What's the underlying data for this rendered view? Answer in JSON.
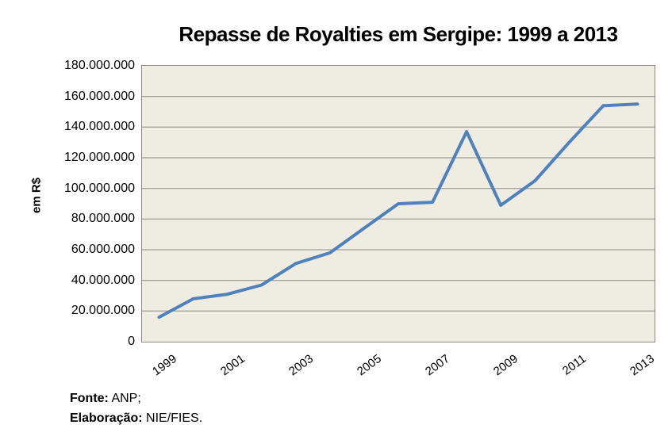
{
  "title": "Repasse de Royalties em Sergipe: 1999 a 2013",
  "y_axis": {
    "title": "em R$"
  },
  "footer": {
    "source_label": "Fonte:",
    "source_value": " ANP;",
    "elaboration_label": "Elaboração:",
    "elaboration_value": " NIE/FIES."
  },
  "chart_data": {
    "type": "line",
    "title": "Repasse de Royalties em Sergipe: 1999 a 2013",
    "xlabel": "",
    "ylabel": "em R$",
    "x": [
      1999,
      2000,
      2001,
      2002,
      2003,
      2004,
      2005,
      2006,
      2007,
      2008,
      2009,
      2010,
      2011,
      2012,
      2013
    ],
    "values": [
      16000000,
      28000000,
      31000000,
      37000000,
      51000000,
      58000000,
      74000000,
      90000000,
      91000000,
      137000000,
      89000000,
      105000000,
      130000000,
      154000000,
      155000000
    ],
    "ylim": [
      0,
      180000000
    ],
    "ytick_step": 20000000,
    "ytick_labels": [
      "0",
      "20.000.000",
      "40.000.000",
      "60.000.000",
      "80.000.000",
      "100.000.000",
      "120.000.000",
      "140.000.000",
      "160.000.000",
      "180.000.000"
    ],
    "xtick_labels": [
      "1999",
      "2001",
      "2003",
      "2005",
      "2007",
      "2009",
      "2011",
      "2013"
    ],
    "grid": "horizontal",
    "legend": false,
    "colors": {
      "line": "#4F81BD",
      "plot_bg": "#EFEDE2",
      "gridline": "#8C8C84",
      "plot_border": "#8C8C84"
    }
  }
}
